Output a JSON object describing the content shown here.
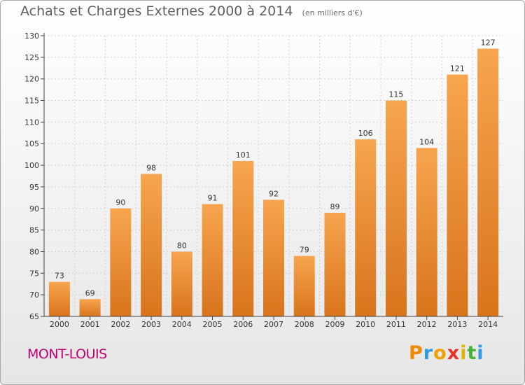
{
  "header": {
    "title": "Achats et Charges Externes 2000 à 2014",
    "unit": "(en milliers d'€)"
  },
  "footer": {
    "commune": "MONT-LOUIS",
    "logo_letters": [
      "P",
      "r",
      "o",
      "x",
      "i",
      "t",
      "i"
    ],
    "logo_colors": [
      "#f08a00",
      "#2e9be0",
      "#f0a000",
      "#e8332a",
      "#e2b400",
      "#48b33a",
      "#2e9be0"
    ]
  },
  "colors": {
    "bar_top": "#f7a54f",
    "bar_bottom": "#d8741c",
    "axis": "#444444",
    "grid": "#d2d2d2"
  },
  "chart_data": {
    "type": "bar",
    "title": "Achats et Charges Externes 2000 à 2014",
    "subtitle": "(en milliers d'€)",
    "xlabel": "",
    "ylabel": "",
    "categories": [
      "2000",
      "2001",
      "2002",
      "2003",
      "2004",
      "2005",
      "2006",
      "2007",
      "2008",
      "2009",
      "2010",
      "2011",
      "2012",
      "2013",
      "2014"
    ],
    "values": [
      73,
      69,
      90,
      98,
      80,
      91,
      101,
      92,
      79,
      89,
      106,
      115,
      104,
      121,
      127
    ],
    "ylim": [
      65,
      130
    ],
    "yticks": [
      65,
      70,
      75,
      80,
      85,
      90,
      95,
      100,
      105,
      110,
      115,
      120,
      125,
      130
    ],
    "grid": "horizontal dotted",
    "legend": "none"
  }
}
